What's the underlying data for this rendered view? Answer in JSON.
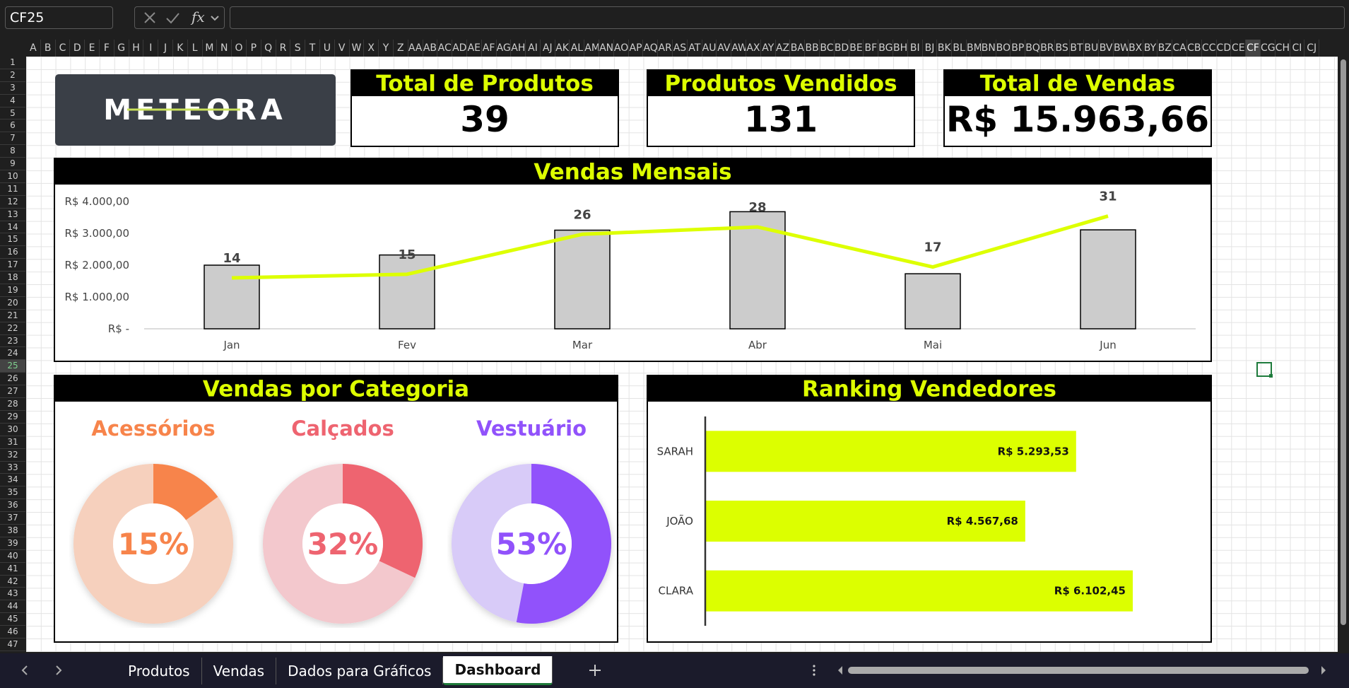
{
  "toolbar": {
    "name_box": "CF25",
    "function_label": "fx"
  },
  "columns": [
    "A",
    "B",
    "C",
    "D",
    "E",
    "F",
    "G",
    "H",
    "I",
    "J",
    "K",
    "L",
    "M",
    "N",
    "O",
    "P",
    "Q",
    "R",
    "S",
    "T",
    "U",
    "V",
    "W",
    "X",
    "Y",
    "Z",
    "AA",
    "AB",
    "AC",
    "AD",
    "AE",
    "AF",
    "AG",
    "AH",
    "AI",
    "AJ",
    "AK",
    "AL",
    "AM",
    "AN",
    "AO",
    "AP",
    "AQ",
    "AR",
    "AS",
    "AT",
    "AU",
    "AV",
    "AW",
    "AX",
    "AY",
    "AZ",
    "BA",
    "BB",
    "BC",
    "BD",
    "BE",
    "BF",
    "BG",
    "BH",
    "BI",
    "BJ",
    "BK",
    "BL",
    "BM",
    "BN",
    "BO",
    "BP",
    "BQ",
    "BR",
    "BS",
    "BT",
    "BU",
    "BV",
    "BW",
    "BX",
    "BY",
    "BZ",
    "CA",
    "CB",
    "CC",
    "CD",
    "CE",
    "CF",
    "CG",
    "CH",
    "CI",
    "CJ"
  ],
  "active_column": 83,
  "rows": [
    1,
    2,
    3,
    4,
    5,
    6,
    7,
    8,
    9,
    10,
    11,
    12,
    13,
    14,
    15,
    16,
    17,
    18,
    19,
    20,
    21,
    22,
    23,
    24,
    25,
    26,
    27,
    28,
    29,
    30,
    31,
    32,
    33,
    34,
    35,
    36,
    37,
    38,
    39,
    40,
    41,
    42,
    43,
    44,
    45,
    46,
    47
  ],
  "active_row": 24,
  "sheet_tabs": [
    "Produtos",
    "Vendas",
    "Dados para Gráficos",
    "Dashboard"
  ],
  "active_tab": 3,
  "dashboard": {
    "logo": "METEORA",
    "kpis": [
      {
        "title": "Total de Produtos",
        "value": 39
      },
      {
        "title": "Produtos Vendidos",
        "value": 131
      },
      {
        "title": "Total de Vendas",
        "value": "R$ 15.963,66"
      }
    ],
    "category_panel_title": "Vendas por Categoria"
  },
  "chart_data": [
    {
      "type": "combo",
      "title": "Vendas Mensais",
      "categories": [
        "Jan",
        "Fev",
        "Mar",
        "Abr",
        "Mai",
        "Jun"
      ],
      "series": [
        {
          "type": "bar",
          "color": "#cccccc",
          "values": [
            2000,
            2320,
            3100,
            3680,
            1730,
            3110
          ]
        },
        {
          "type": "line",
          "axis": "y2",
          "color": "#ddff00",
          "values": [
            14,
            15,
            26,
            28,
            17,
            31
          ]
        }
      ],
      "ylim": [
        0,
        4000
      ],
      "yticks": [
        {
          "value": 0,
          "label": "R$ -"
        },
        {
          "value": 1000,
          "label": "R$ 1.000,00"
        },
        {
          "value": 2000,
          "label": "R$ 2.000,00"
        },
        {
          "value": 3000,
          "label": "R$ 3.000,00"
        },
        {
          "value": 4000,
          "label": "R$ 4.000,00"
        }
      ],
      "y2lim": [
        0,
        35
      ],
      "grid": false
    },
    {
      "type": "donut",
      "title": "Acessórios",
      "values": [
        15
      ],
      "value_labels": [
        "15%"
      ],
      "color": "#f7844b",
      "track_color": "#f6d0bd"
    },
    {
      "type": "donut",
      "title": "Calçados",
      "values": [
        32
      ],
      "value_labels": [
        "32%"
      ],
      "color": "#ee6470",
      "track_color": "#f3c8cd"
    },
    {
      "type": "donut",
      "title": "Vestuário",
      "values": [
        53
      ],
      "value_labels": [
        "53%"
      ],
      "color": "#9152fb",
      "track_color": "#d8cbf8"
    },
    {
      "type": "barh",
      "title": "Ranking Vendedores",
      "categories": [
        "SARAH",
        "JOÃO",
        "CLARA"
      ],
      "values": [
        5293.53,
        4567.68,
        6102.45
      ],
      "value_labels": [
        "R$ 5.293,53",
        "R$ 4.567,68",
        "R$ 6.102,45"
      ],
      "color": "#dcff00",
      "xlim": [
        0,
        7000
      ]
    }
  ]
}
